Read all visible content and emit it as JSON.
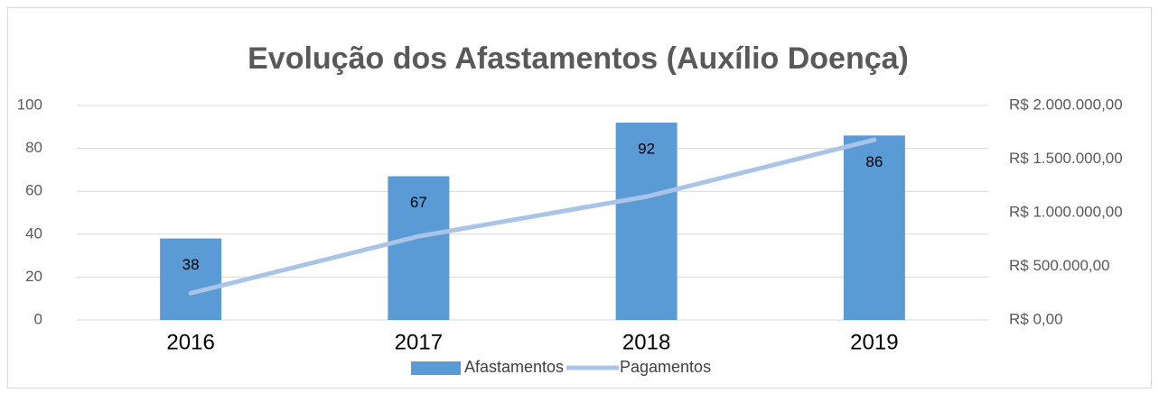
{
  "chart_data": {
    "type": "bar",
    "title": "Evolução dos Afastamentos (Auxílio Doença)",
    "categories": [
      "2016",
      "2017",
      "2018",
      "2019"
    ],
    "series": [
      {
        "name": "Afastamentos",
        "color": "#5b9bd5",
        "values": [
          38,
          67,
          92,
          86
        ]
      },
      {
        "name": "Pagamentos",
        "color": "#a9c4e6",
        "axis": "y2",
        "type": "line",
        "values": [
          250000,
          780000,
          1150000,
          1680000
        ]
      }
    ],
    "ylim": [
      0,
      100
    ],
    "yticks": [
      0,
      20,
      40,
      60,
      80,
      100
    ],
    "y2lim": [
      0,
      2000000
    ],
    "y2ticks": [
      {
        "value": 0,
        "label": "R$ 0,00"
      },
      {
        "value": 500000,
        "label": "R$ 500.000,00"
      },
      {
        "value": 1000000,
        "label": "R$ 1.000.000,00"
      },
      {
        "value": 1500000,
        "label": "R$ 1.500.000,00"
      },
      {
        "value": 2000000,
        "label": "R$ 2.000.000,00"
      }
    ],
    "grid": true,
    "legend": "bottom"
  }
}
